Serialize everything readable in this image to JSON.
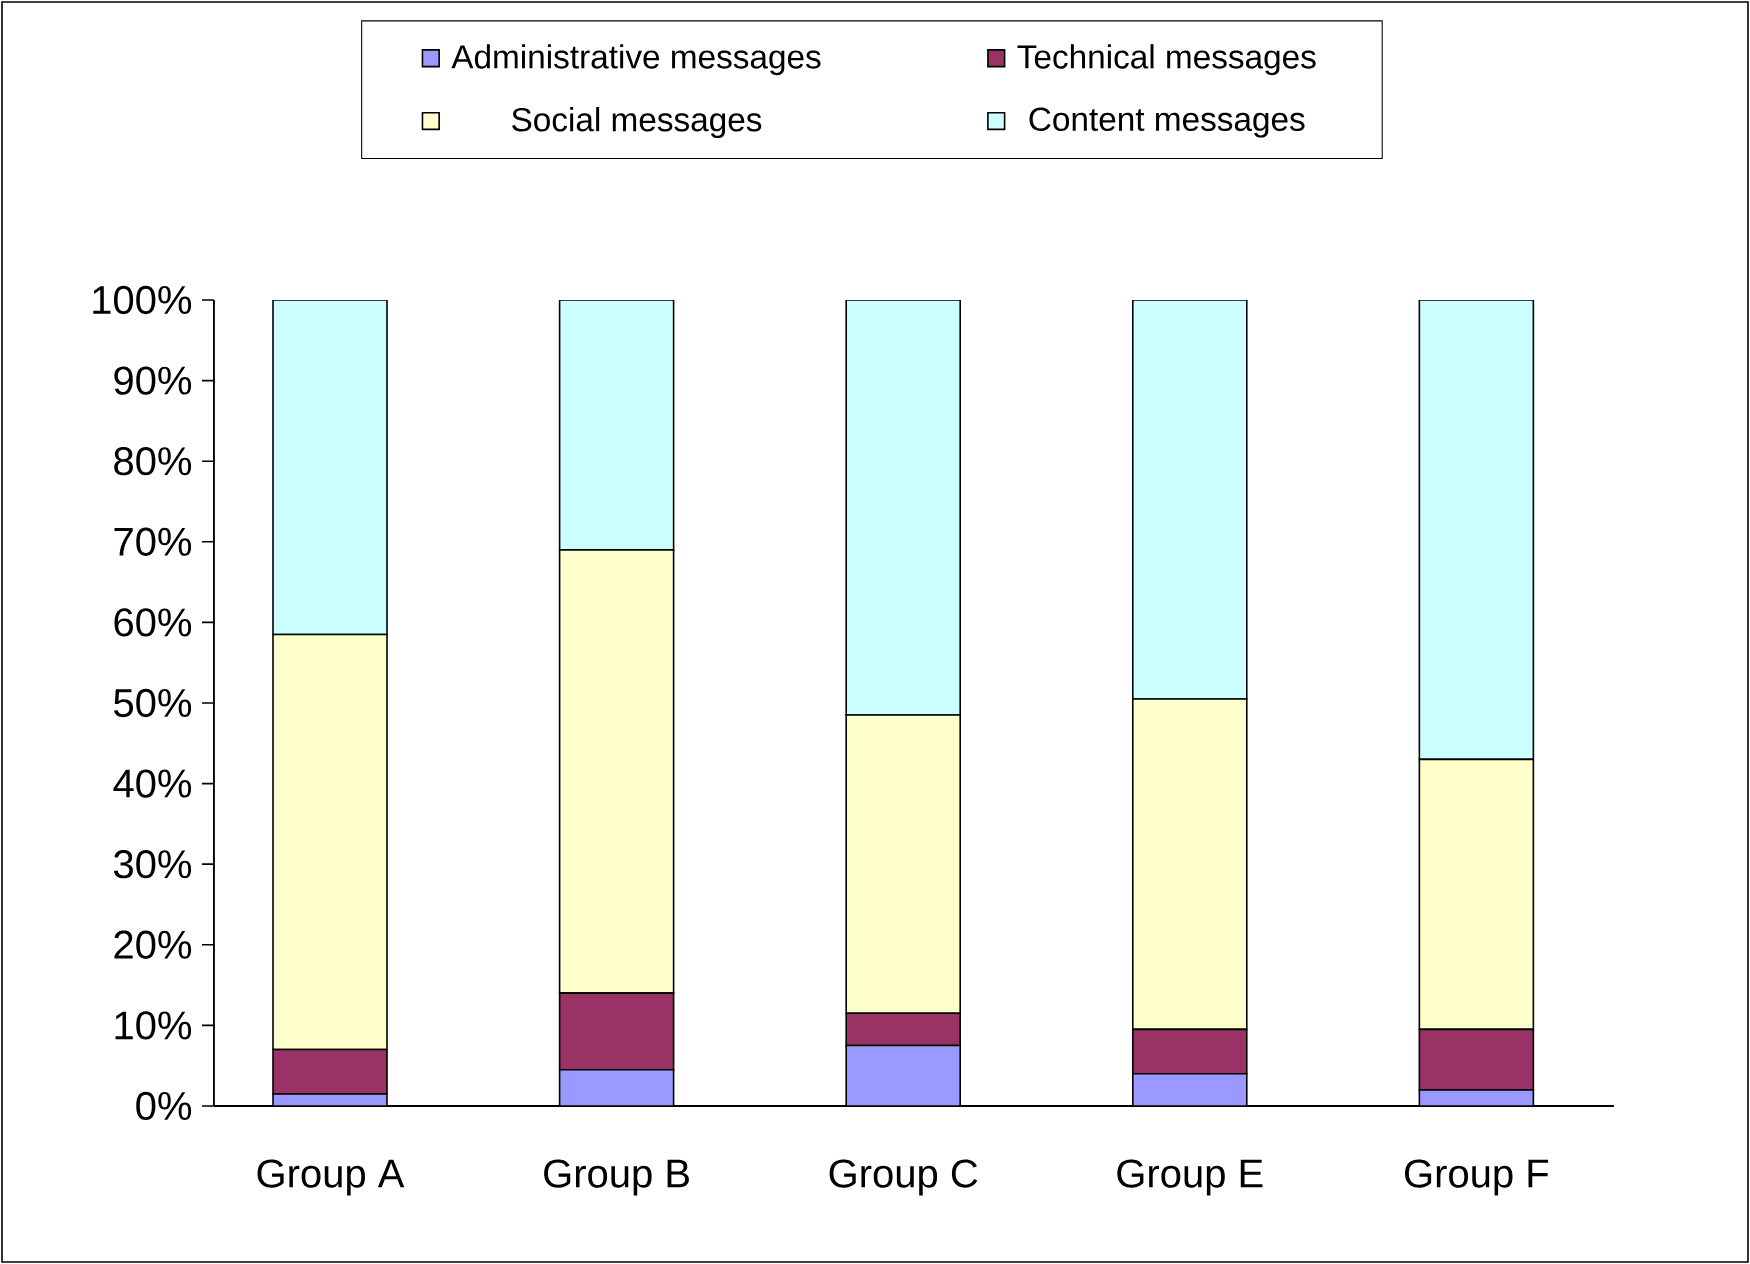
{
  "chart_data": {
    "type": "bar",
    "stacked": true,
    "categories": [
      "Group A",
      "Group B",
      "Group C",
      "Group E",
      "Group F"
    ],
    "series": [
      {
        "name": "Administrative messages",
        "color": "#9999ff",
        "values": [
          1.5,
          4.5,
          7.5,
          4,
          2
        ]
      },
      {
        "name": "Technical messages",
        "color": "#993366",
        "values": [
          5.5,
          9.5,
          4,
          5.5,
          7.5
        ]
      },
      {
        "name": "Social messages",
        "color": "#ffffcc",
        "values": [
          51.5,
          55,
          37,
          41,
          33.5
        ]
      },
      {
        "name": "Content messages",
        "color": "#ccffff",
        "values": [
          41.5,
          31,
          51.5,
          49.5,
          57
        ]
      }
    ],
    "ylim": [
      0,
      100
    ],
    "yticks": [
      {
        "value": 0,
        "label": "0%"
      },
      {
        "value": 10,
        "label": "10%"
      },
      {
        "value": 20,
        "label": "20%"
      },
      {
        "value": 30,
        "label": "30%"
      },
      {
        "value": 40,
        "label": "40%"
      },
      {
        "value": 50,
        "label": "50%"
      },
      {
        "value": 60,
        "label": "60%"
      },
      {
        "value": 70,
        "label": "70%"
      },
      {
        "value": 80,
        "label": "80%"
      },
      {
        "value": 90,
        "label": "90%"
      },
      {
        "value": 100,
        "label": "100%"
      }
    ],
    "grid": false,
    "legend": "top"
  }
}
